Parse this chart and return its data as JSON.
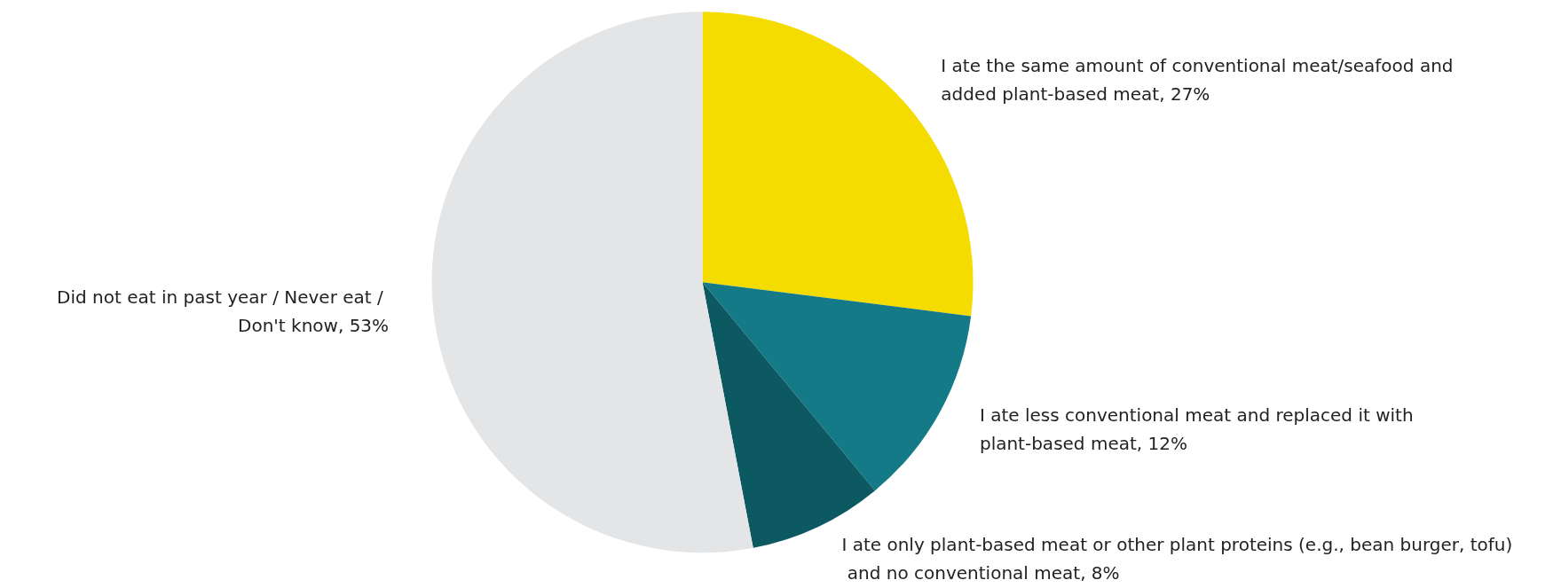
{
  "chart_data": {
    "type": "pie",
    "categories": [
      "I ate the same amount of conventional meat/seafood and added plant-based meat",
      "I ate less conventional meat and replaced it with plant-based meat",
      "I ate only plant-based meat or other plant proteins (e.g., bean burger, tofu) and no conventional meat",
      "Did not eat in past year / Never eat / Don't know"
    ],
    "values": [
      27,
      12,
      8,
      53
    ],
    "value_labels": [
      "27%",
      "12%",
      "8%",
      "53%"
    ],
    "colors": [
      "#f5dc00",
      "#157a87",
      "#0d5962",
      "#e4e5e7"
    ],
    "legend": false
  }
}
